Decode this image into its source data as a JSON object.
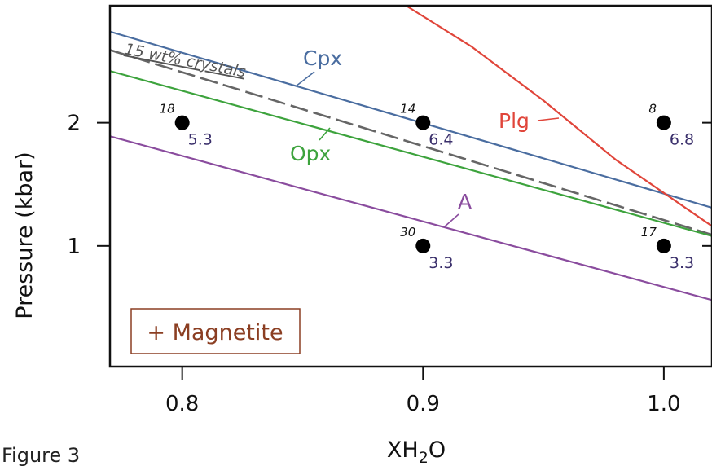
{
  "caption": "Figure 3",
  "chart_data": {
    "type": "line",
    "title": "",
    "xlabel": "XH₂O",
    "ylabel": "Pressure (kbar)",
    "xlim": [
      0.77,
      1.02
    ],
    "ylim": [
      0.02,
      2.95
    ],
    "x_ticks": [
      0.8,
      0.9,
      1.0
    ],
    "x_tick_labels": [
      "0.8",
      "0.9",
      "1.0"
    ],
    "y_ticks": [
      1,
      2
    ],
    "y_tick_labels": [
      "1",
      "2"
    ],
    "grid": false,
    "series": [
      {
        "name": "Cpx",
        "color": "#4a6da0",
        "dash": false,
        "points": [
          [
            0.77,
            2.74
          ],
          [
            1.02,
            1.31
          ]
        ]
      },
      {
        "name": "15 wt% crystals",
        "color": "#666666",
        "dash": true,
        "points": [
          [
            0.77,
            2.59
          ],
          [
            1.02,
            1.09
          ]
        ]
      },
      {
        "name": "Opx",
        "color": "#3da33d",
        "dash": false,
        "points": [
          [
            0.77,
            2.42
          ],
          [
            1.02,
            1.08
          ]
        ]
      },
      {
        "name": "A",
        "color": "#8a4c9e",
        "dash": false,
        "points": [
          [
            0.77,
            1.89
          ],
          [
            1.02,
            0.56
          ]
        ]
      },
      {
        "name": "Plg",
        "color": "#e0453a",
        "dash": false,
        "points": [
          [
            0.893,
            2.95
          ],
          [
            0.92,
            2.62
          ],
          [
            0.95,
            2.18
          ],
          [
            0.98,
            1.7
          ],
          [
            1.0,
            1.43
          ],
          [
            1.02,
            1.16
          ]
        ]
      }
    ],
    "points": [
      {
        "x": 0.8,
        "y": 2.0,
        "run": "18",
        "value": "5.3"
      },
      {
        "x": 0.9,
        "y": 2.0,
        "run": "14",
        "value": "6.4"
      },
      {
        "x": 1.0,
        "y": 2.0,
        "run": "8",
        "value": "6.8"
      },
      {
        "x": 0.9,
        "y": 1.0,
        "run": "30",
        "value": "3.3"
      },
      {
        "x": 1.0,
        "y": 1.0,
        "run": "17",
        "value": "3.3"
      }
    ],
    "annotation": "+ Magnetite",
    "annotation_color": "#8b3e22"
  }
}
